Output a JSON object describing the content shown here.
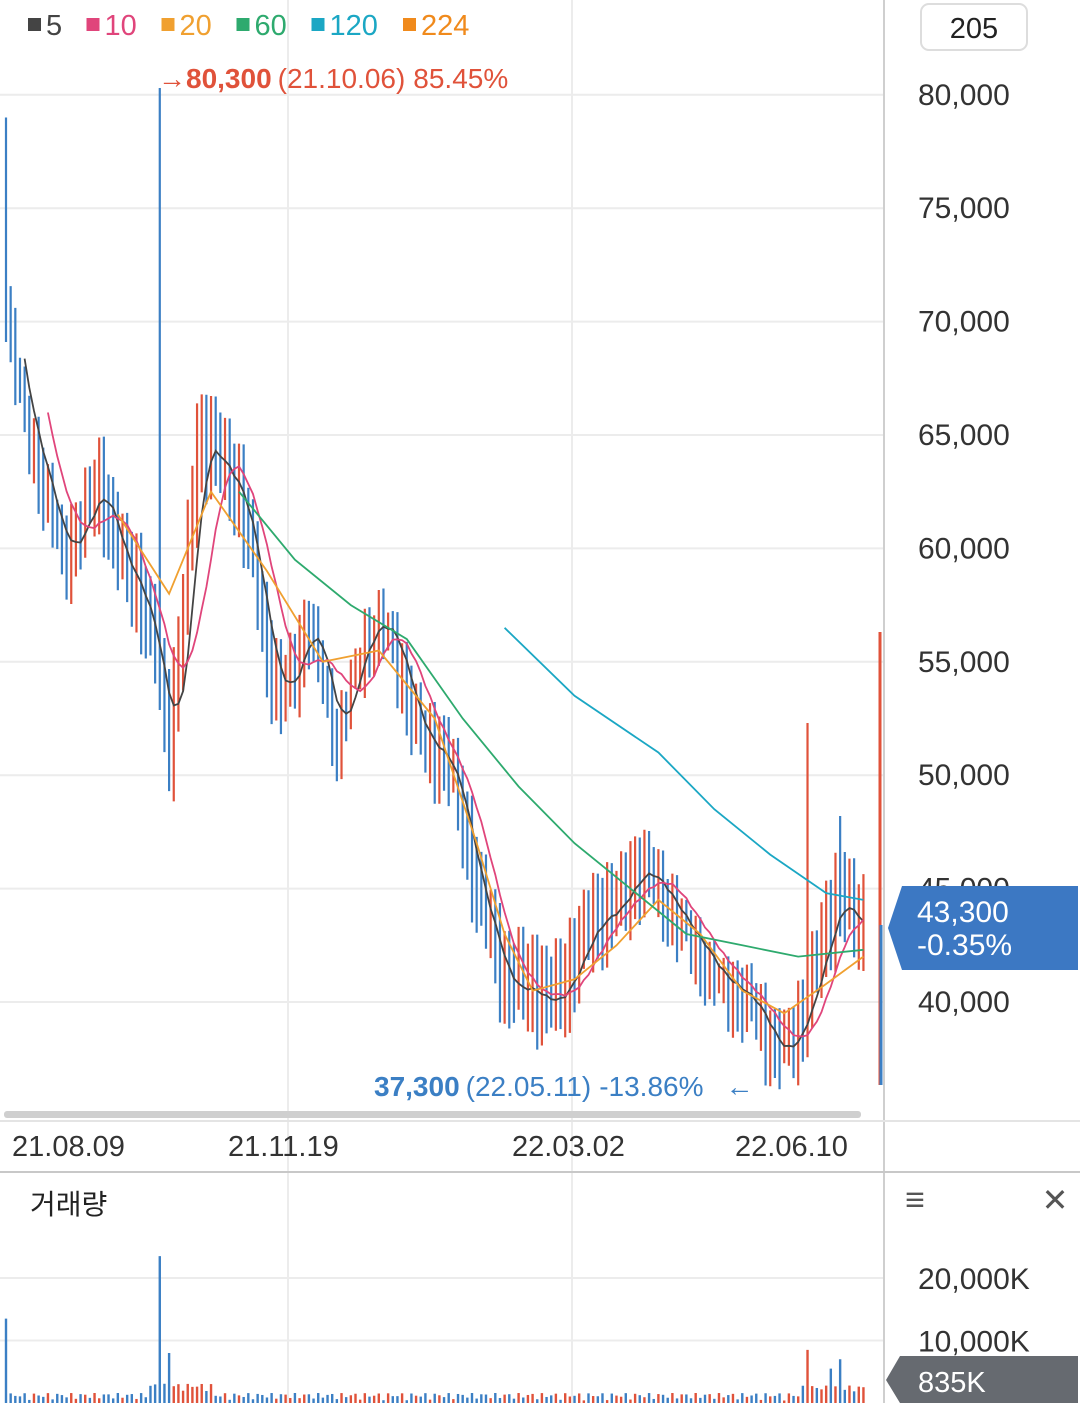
{
  "period_badge": "205",
  "legend": [
    {
      "label": "5",
      "color": "#444444"
    },
    {
      "label": "10",
      "color": "#e0457b"
    },
    {
      "label": "20",
      "color": "#f0a030"
    },
    {
      "label": "60",
      "color": "#2eaa6e"
    },
    {
      "label": "120",
      "color": "#1ba7c4"
    },
    {
      "label": "224",
      "color": "#f08a1c"
    }
  ],
  "high_annotation": {
    "arrow": "→",
    "price": "80,300",
    "date": "(21.10.06)",
    "pct": "85.45%"
  },
  "low_annotation": {
    "price": "37,300",
    "date": "(22.05.11)",
    "pct": "-13.86%",
    "arrow": "←"
  },
  "current": {
    "price": "43,300",
    "change": "-0.35%"
  },
  "volume_panel": {
    "title": "거래량",
    "current": "835K",
    "menu_icon": "≡",
    "close_icon": "✕"
  },
  "colors": {
    "up": "#e0523a",
    "down": "#3b7fc4",
    "grid": "#ececec",
    "current_bg": "#3c78c3"
  },
  "chart_data": {
    "type": "candlestick",
    "price_axis": {
      "ticks": [
        80000,
        75000,
        70000,
        65000,
        60000,
        55000,
        50000,
        45000,
        40000
      ],
      "labels": [
        "80,000",
        "75,000",
        "70,000",
        "65,000",
        "60,000",
        "55,000",
        "50,000",
        "45,000",
        "40,000"
      ],
      "range": [
        35000,
        84000
      ]
    },
    "date_labels": [
      "21.08.09",
      "21.11.19",
      "22.03.02",
      "22.06.10"
    ],
    "close_anchors": [
      [
        0,
        71000
      ],
      [
        4,
        66000
      ],
      [
        8,
        62500
      ],
      [
        12,
        60000
      ],
      [
        16,
        61000
      ],
      [
        20,
        62500
      ],
      [
        24,
        60000
      ],
      [
        28,
        58000
      ],
      [
        32,
        55000
      ],
      [
        35,
        51500
      ],
      [
        38,
        57000
      ],
      [
        41,
        64000
      ],
      [
        44,
        64500
      ],
      [
        47,
        63500
      ],
      [
        50,
        62000
      ],
      [
        53,
        59000
      ],
      [
        56,
        55500
      ],
      [
        59,
        53500
      ],
      [
        62,
        54500
      ],
      [
        65,
        57000
      ],
      [
        68,
        54500
      ],
      [
        71,
        51500
      ],
      [
        74,
        54000
      ],
      [
        77,
        56500
      ],
      [
        80,
        57000
      ],
      [
        83,
        55500
      ],
      [
        86,
        53500
      ],
      [
        89,
        52000
      ],
      [
        92,
        51000
      ],
      [
        95,
        50000
      ],
      [
        98,
        48000
      ],
      [
        101,
        45000
      ],
      [
        104,
        42500
      ],
      [
        107,
        40500
      ],
      [
        110,
        41000
      ],
      [
        113,
        40500
      ],
      [
        116,
        39500
      ],
      [
        119,
        40500
      ],
      [
        122,
        42000
      ],
      [
        125,
        43000
      ],
      [
        128,
        43500
      ],
      [
        131,
        44500
      ],
      [
        134,
        45500
      ],
      [
        137,
        45500
      ],
      [
        140,
        45000
      ],
      [
        143,
        44500
      ],
      [
        146,
        43000
      ],
      [
        149,
        42000
      ],
      [
        152,
        41500
      ],
      [
        155,
        41000
      ],
      [
        158,
        40000
      ],
      [
        161,
        39500
      ],
      [
        164,
        38500
      ],
      [
        167,
        37800
      ],
      [
        170,
        38500
      ],
      [
        173,
        41000
      ],
      [
        176,
        43500
      ],
      [
        179,
        44500
      ],
      [
        182,
        43000
      ],
      [
        184,
        43300
      ]
    ],
    "ma_lines": [
      {
        "name": "20",
        "color": "#f0a030",
        "points": [
          [
            24,
            61500
          ],
          [
            35,
            58000
          ],
          [
            44,
            62500
          ],
          [
            56,
            59000
          ],
          [
            68,
            55000
          ],
          [
            80,
            55500
          ],
          [
            92,
            52500
          ],
          [
            101,
            47000
          ],
          [
            107,
            43000
          ],
          [
            113,
            40500
          ],
          [
            122,
            41000
          ],
          [
            131,
            42500
          ],
          [
            140,
            44500
          ],
          [
            149,
            43000
          ],
          [
            158,
            40500
          ],
          [
            167,
            39500
          ],
          [
            176,
            40800
          ],
          [
            184,
            42000
          ]
        ]
      },
      {
        "name": "60",
        "color": "#2eaa6e",
        "points": [
          [
            50,
            62500
          ],
          [
            62,
            59500
          ],
          [
            74,
            57500
          ],
          [
            86,
            56000
          ],
          [
            98,
            52500
          ],
          [
            110,
            49500
          ],
          [
            122,
            47000
          ],
          [
            134,
            45000
          ],
          [
            146,
            43000
          ],
          [
            158,
            42500
          ],
          [
            170,
            42000
          ],
          [
            184,
            42300
          ]
        ]
      },
      {
        "name": "120",
        "color": "#1ba7c4",
        "points": [
          [
            107,
            56500
          ],
          [
            122,
            53500
          ],
          [
            140,
            51000
          ],
          [
            152,
            48500
          ],
          [
            164,
            46500
          ],
          [
            176,
            44800
          ],
          [
            184,
            44500
          ]
        ]
      }
    ],
    "high": {
      "value": 80300,
      "index": 33
    },
    "low": {
      "value": 37300,
      "index": 167
    },
    "volume_axis": {
      "labels": [
        "20,000K",
        "10,000K"
      ],
      "values": [
        20000,
        10000
      ]
    },
    "volume_spikes": [
      [
        0,
        13500
      ],
      [
        33,
        23500
      ],
      [
        35,
        8000
      ],
      [
        172,
        8500
      ],
      [
        177,
        5500
      ],
      [
        179,
        7000
      ]
    ]
  }
}
